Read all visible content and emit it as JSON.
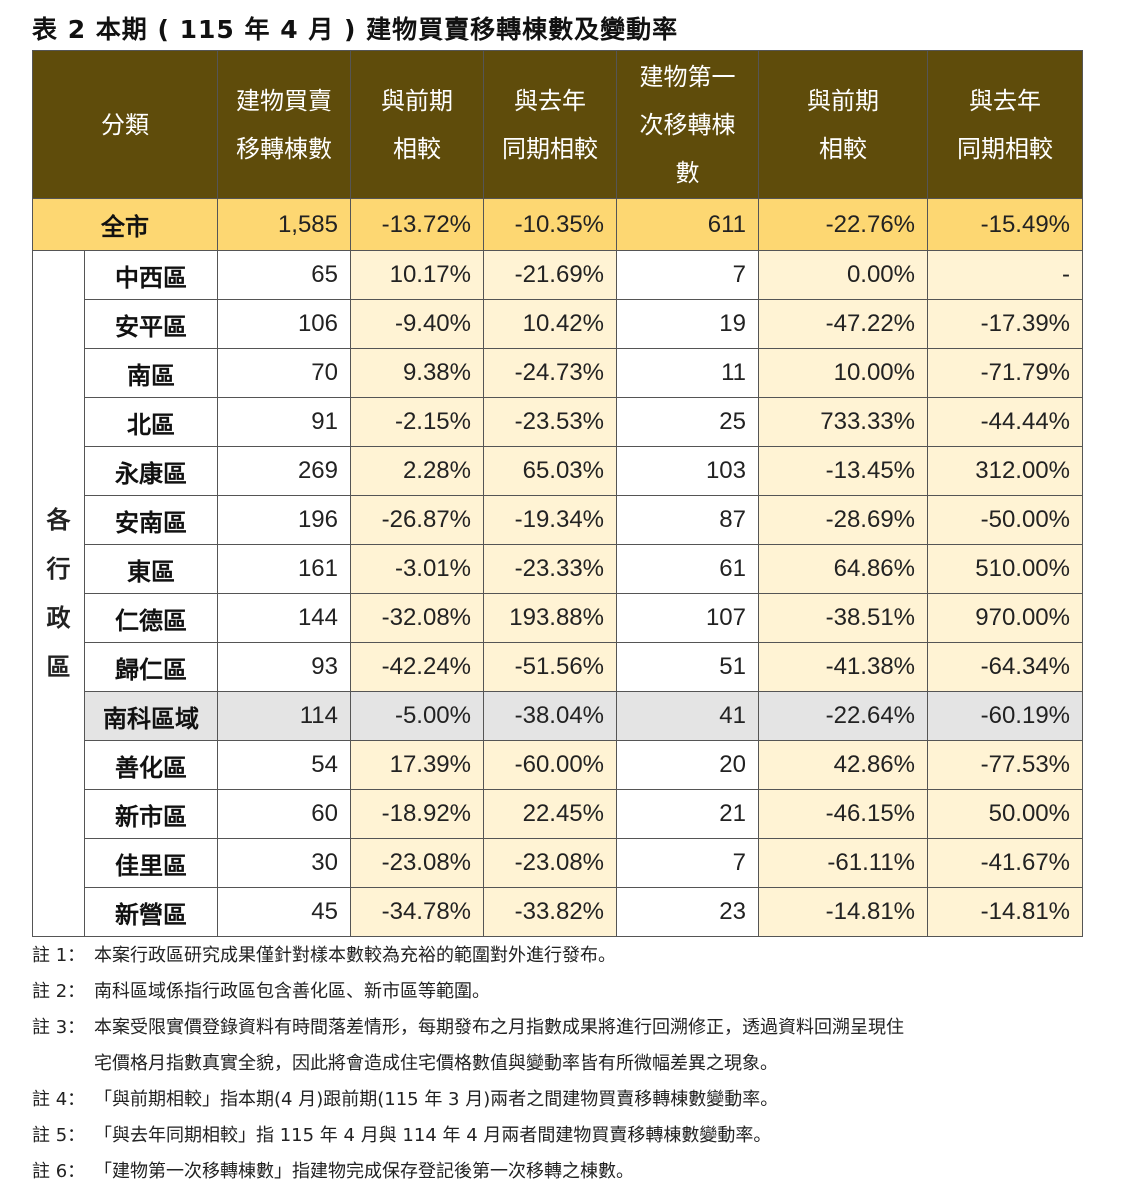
{
  "title": "表 2 本期 ( 115 年 4 月 ) 建物買賣移轉棟數及變動率",
  "headers": {
    "category": "分類",
    "transfer_count": [
      "建物買賣",
      "移轉棟數"
    ],
    "transfer_mom": [
      "與前期",
      "相較"
    ],
    "transfer_yoy": [
      "與去年",
      "同期相較"
    ],
    "first_count": [
      "建物第一",
      "次移轉棟",
      "數"
    ],
    "first_mom": [
      "與前期",
      "相較"
    ],
    "first_yoy": [
      "與去年",
      "同期相較"
    ]
  },
  "total": {
    "name": "全市",
    "values": [
      "1,585",
      "-13.72%",
      "-10.35%",
      "611",
      "-22.76%",
      "-15.49%"
    ]
  },
  "group_label": [
    "各",
    "行",
    "政",
    "區"
  ],
  "districts": [
    {
      "name": "中西區",
      "values": [
        "65",
        "10.17%",
        "-21.69%",
        "7",
        "0.00%",
        "-"
      ]
    },
    {
      "name": "安平區",
      "values": [
        "106",
        "-9.40%",
        "10.42%",
        "19",
        "-47.22%",
        "-17.39%"
      ]
    },
    {
      "name": "南區",
      "values": [
        "70",
        "9.38%",
        "-24.73%",
        "11",
        "10.00%",
        "-71.79%"
      ]
    },
    {
      "name": "北區",
      "values": [
        "91",
        "-2.15%",
        "-23.53%",
        "25",
        "733.33%",
        "-44.44%"
      ]
    },
    {
      "name": "永康區",
      "values": [
        "269",
        "2.28%",
        "65.03%",
        "103",
        "-13.45%",
        "312.00%"
      ]
    },
    {
      "name": "安南區",
      "values": [
        "196",
        "-26.87%",
        "-19.34%",
        "87",
        "-28.69%",
        "-50.00%"
      ]
    },
    {
      "name": "東區",
      "values": [
        "161",
        "-3.01%",
        "-23.33%",
        "61",
        "64.86%",
        "510.00%"
      ]
    },
    {
      "name": "仁德區",
      "values": [
        "144",
        "-32.08%",
        "193.88%",
        "107",
        "-38.51%",
        "970.00%"
      ]
    },
    {
      "name": "歸仁區",
      "values": [
        "93",
        "-42.24%",
        "-51.56%",
        "51",
        "-41.38%",
        "-64.34%"
      ]
    },
    {
      "name": "南科區域",
      "values": [
        "114",
        "-5.00%",
        "-38.04%",
        "41",
        "-22.64%",
        "-60.19%"
      ]
    },
    {
      "name": "善化區",
      "values": [
        "54",
        "17.39%",
        "-60.00%",
        "20",
        "42.86%",
        "-77.53%"
      ]
    },
    {
      "name": "新市區",
      "values": [
        "60",
        "-18.92%",
        "22.45%",
        "21",
        "-46.15%",
        "50.00%"
      ]
    },
    {
      "name": "佳里區",
      "values": [
        "30",
        "-23.08%",
        "-23.08%",
        "7",
        "-61.11%",
        "-41.67%"
      ]
    },
    {
      "name": "新營區",
      "values": [
        "45",
        "-34.78%",
        "-33.82%",
        "23",
        "-14.81%",
        "-14.81%"
      ]
    }
  ],
  "notes": [
    {
      "key": "註 1：",
      "text": "本案行政區研究成果僅針對樣本數較為充裕的範圍對外進行發布。"
    },
    {
      "key": "註 2：",
      "text": "南科區域係指行政區包含善化區、新市區等範圍。"
    },
    {
      "key": "註 3：",
      "text": "本案受限實價登錄資料有時間落差情形，每期發布之月指數成果將進行回溯修正，透過資料回溯呈現住",
      "cont": "宅價格月指數真實全貌，因此將會造成住宅價格數值與變動率皆有所微幅差異之現象。"
    },
    {
      "key": "註 4：",
      "text": "「與前期相較」指本期(4 月)跟前期(115 年 3 月)兩者之間建物買賣移轉棟數變動率。"
    },
    {
      "key": "註 5：",
      "text": "「與去年同期相較」指 115 年 4 月與 114 年 4 月兩者間建物買賣移轉棟數變動率。"
    },
    {
      "key": "註 6：",
      "text": "「建物第一次移轉棟數」指建物完成保存登記後第一次移轉之棟數。"
    }
  ],
  "colors": {
    "header_bg": "#5f4c0b",
    "total_bg": "#fdd772",
    "pct_bg": "#fff3d4",
    "shaded_row_bg": "#e4e4e4"
  }
}
